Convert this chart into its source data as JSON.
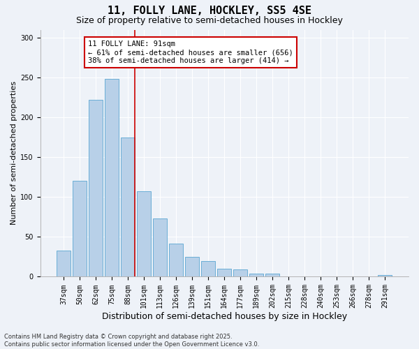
{
  "title_line1": "11, FOLLY LANE, HOCKLEY, SS5 4SE",
  "title_line2": "Size of property relative to semi-detached houses in Hockley",
  "xlabel": "Distribution of semi-detached houses by size in Hockley",
  "ylabel": "Number of semi-detached properties",
  "categories": [
    "37sqm",
    "50sqm",
    "62sqm",
    "75sqm",
    "88sqm",
    "101sqm",
    "113sqm",
    "126sqm",
    "139sqm",
    "151sqm",
    "164sqm",
    "177sqm",
    "189sqm",
    "202sqm",
    "215sqm",
    "228sqm",
    "240sqm",
    "253sqm",
    "266sqm",
    "278sqm",
    "291sqm"
  ],
  "values": [
    33,
    120,
    222,
    248,
    175,
    107,
    73,
    42,
    25,
    20,
    10,
    9,
    4,
    4,
    0,
    0,
    0,
    0,
    0,
    0,
    2
  ],
  "bar_color": "#b8d0e8",
  "bar_edgecolor": "#6aaed6",
  "vline_color": "#cc0000",
  "annotation_text": "11 FOLLY LANE: 91sqm\n← 61% of semi-detached houses are smaller (656)\n38% of semi-detached houses are larger (414) →",
  "annotation_box_facecolor": "#ffffff",
  "annotation_box_edgecolor": "#cc0000",
  "ylim": [
    0,
    310
  ],
  "yticks": [
    0,
    50,
    100,
    150,
    200,
    250,
    300
  ],
  "background_color": "#eef2f8",
  "grid_color": "#ffffff",
  "footnote": "Contains HM Land Registry data © Crown copyright and database right 2025.\nContains public sector information licensed under the Open Government Licence v3.0.",
  "title_fontsize": 11,
  "subtitle_fontsize": 9,
  "ylabel_fontsize": 8,
  "xlabel_fontsize": 9,
  "tick_fontsize": 7,
  "annotation_fontsize": 7.5,
  "footnote_fontsize": 6
}
